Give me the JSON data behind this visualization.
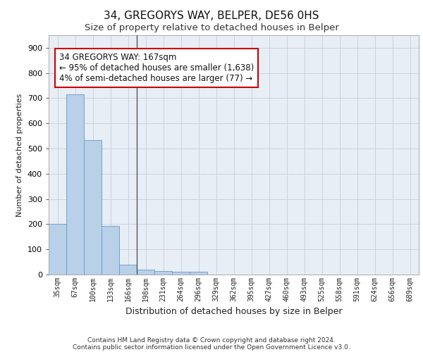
{
  "title1": "34, GREGORYS WAY, BELPER, DE56 0HS",
  "title2": "Size of property relative to detached houses in Belper",
  "xlabel": "Distribution of detached houses by size in Belper",
  "ylabel": "Number of detached properties",
  "categories": [
    "35sqm",
    "67sqm",
    "100sqm",
    "133sqm",
    "166sqm",
    "198sqm",
    "231sqm",
    "264sqm",
    "296sqm",
    "329sqm",
    "362sqm",
    "395sqm",
    "427sqm",
    "460sqm",
    "493sqm",
    "525sqm",
    "558sqm",
    "591sqm",
    "624sqm",
    "656sqm",
    "689sqm"
  ],
  "values": [
    200,
    715,
    535,
    193,
    40,
    20,
    14,
    12,
    10,
    0,
    0,
    0,
    0,
    0,
    0,
    0,
    0,
    0,
    0,
    0,
    0
  ],
  "bar_color": "#b8d0e8",
  "bar_edge_color": "#6699cc",
  "property_line_index": 4.5,
  "annotation_text": "34 GREGORYS WAY: 167sqm\n← 95% of detached houses are smaller (1,638)\n4% of semi-detached houses are larger (77) →",
  "annotation_box_color": "#ffffff",
  "annotation_border_color": "#cc0000",
  "ylim": [
    0,
    950
  ],
  "yticks": [
    0,
    100,
    200,
    300,
    400,
    500,
    600,
    700,
    800,
    900
  ],
  "grid_color": "#c8d4e0",
  "background_color": "#e8eef5",
  "footer_line1": "Contains HM Land Registry data © Crown copyright and database right 2024.",
  "footer_line2": "Contains public sector information licensed under the Open Government Licence v3.0.",
  "title_fontsize": 11,
  "subtitle_fontsize": 9.5,
  "annotation_fontsize": 8.5
}
